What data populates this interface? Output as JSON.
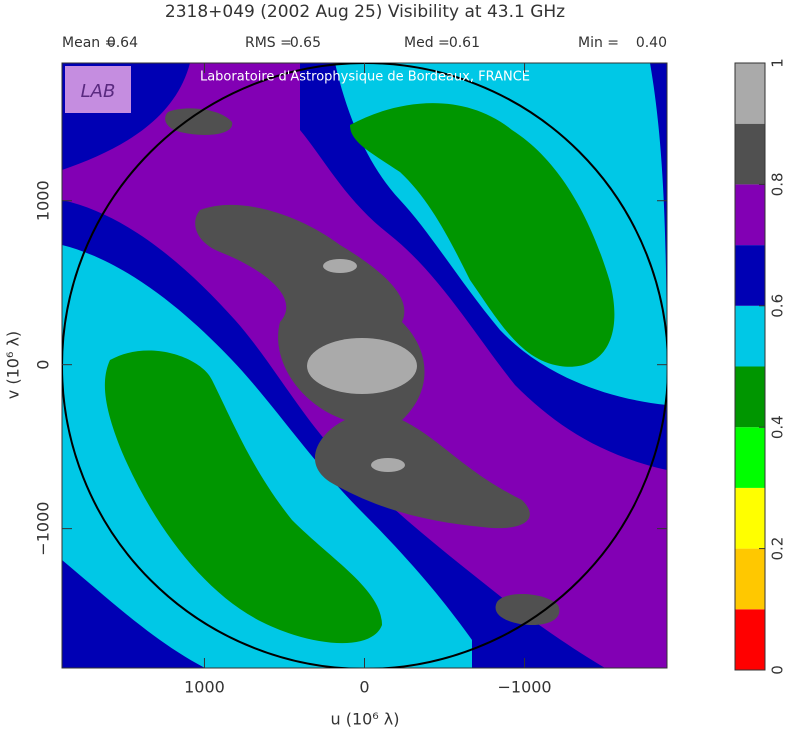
{
  "chart_data": {
    "type": "contour",
    "title": "2318+049  (2002 Aug 25)   Visibility at 43.1 GHz",
    "stats": [
      {
        "label": "Mean =",
        "value": "0.64"
      },
      {
        "label": "RMS =",
        "value": "0.65"
      },
      {
        "label": "Med =",
        "value": "0.61"
      },
      {
        "label": "Min =",
        "value": "0.40"
      }
    ],
    "watermark": "Laboratoire d'Astrophysique de Bordeaux, FRANCE",
    "logo_text": "LAB",
    "x_label": "u  (10⁶ λ)",
    "y_label": "v  (10⁶ λ)",
    "xlim": [
      1890,
      -1890
    ],
    "ylim": [
      -1850,
      1840
    ],
    "xticks": [
      {
        "value": 1000,
        "label": "1000"
      },
      0,
      {
        "value": -1000,
        "label": "−1000"
      }
    ],
    "yticks": [
      {
        "value": -1000,
        "label": "−1000"
      },
      0,
      1000
    ],
    "levels": [
      0,
      0.1,
      0.2,
      0.3,
      0.4,
      0.5,
      0.6,
      0.7,
      0.8,
      0.9,
      1
    ],
    "colors": [
      "#ff0000",
      "#ffc800",
      "#ffff00",
      "#00ff00",
      "#009600",
      "#00c8e6",
      "#0000b4",
      "#8200b4",
      "#505050",
      "#aaaaaa"
    ],
    "cbar_lim": [
      0,
      1
    ],
    "cbar_ticks": [
      0,
      0.2,
      0.4,
      0.6,
      0.8,
      1
    ]
  }
}
